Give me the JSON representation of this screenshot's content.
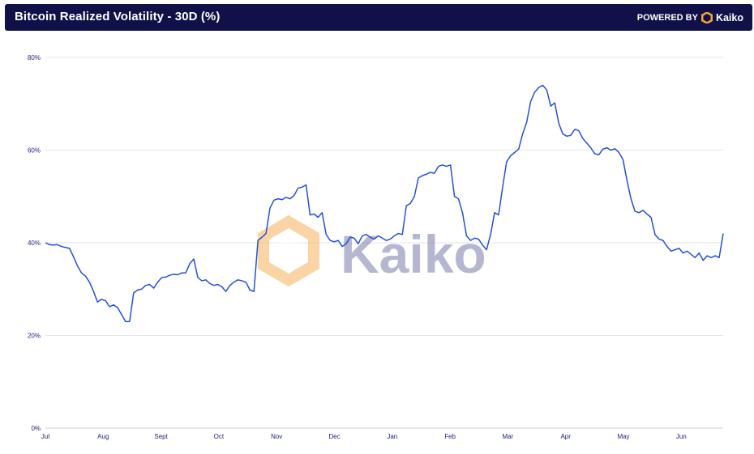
{
  "header": {
    "title": "Bitcoin Realized Volatility - 30D (%)",
    "powered_label": "POWERED BY",
    "brand": "Kaiko"
  },
  "watermark": {
    "text": "Kaiko"
  },
  "colors": {
    "header_bg": "#0f1148",
    "line": "#2450d8",
    "grid": "#e6e6e6",
    "tick_text": "#1a1f7a",
    "logo_orange": "#f7a23a"
  },
  "chart_data": {
    "type": "line",
    "title": "Bitcoin Realized Volatility - 30D (%)",
    "xlabel": "",
    "ylabel": "",
    "ylim": [
      0,
      80
    ],
    "yticks": [
      "0%",
      "20%",
      "40%",
      "60%",
      "80%"
    ],
    "ytick_values": [
      0,
      20,
      40,
      60,
      80
    ],
    "xticks": [
      "Jul",
      "Aug",
      "Sept",
      "Oct",
      "Nov",
      "Dec",
      "Jan",
      "Feb",
      "Mar",
      "Apr",
      "May",
      "Jun"
    ],
    "grid": true,
    "legend": "none",
    "series": [
      {
        "values": [
          40.0,
          39.6,
          39.5,
          39.6,
          39.2,
          39.0,
          38.8,
          37.0,
          35.0,
          33.5,
          32.8,
          31.5,
          29.5,
          27.2,
          27.8,
          27.5,
          26.2,
          26.6,
          26.0,
          24.5,
          23.0,
          23.0,
          29.2,
          29.8,
          30.0,
          30.8,
          31.0,
          30.2,
          31.5,
          32.5,
          32.6,
          33.0,
          33.2,
          33.1,
          33.5,
          33.5,
          35.5,
          36.5,
          32.5,
          31.8,
          32.0,
          31.2,
          30.8,
          31.0,
          30.5,
          29.5,
          30.8,
          31.5,
          32.0,
          31.8,
          31.5,
          29.8,
          29.5,
          40.5,
          41.2,
          42.0,
          47.5,
          49.2,
          49.5,
          49.3,
          49.8,
          49.5,
          50.2,
          51.8,
          52.0,
          52.5,
          46.0,
          46.2,
          45.5,
          46.5,
          41.8,
          40.5,
          40.2,
          40.5,
          39.2,
          39.8,
          41.2,
          41.0,
          39.8,
          41.5,
          41.8,
          41.2,
          40.8,
          41.5,
          41.0,
          40.5,
          40.8,
          41.5,
          42.0,
          41.8,
          48.0,
          48.5,
          50.0,
          54.0,
          54.5,
          54.8,
          55.2,
          55.0,
          56.5,
          56.8,
          56.5,
          56.8,
          50.0,
          49.5,
          46.5,
          41.5,
          40.5,
          41.0,
          40.8,
          39.5,
          38.5,
          41.8,
          46.5,
          46.0,
          52.0,
          57.5,
          58.8,
          59.5,
          60.2,
          63.5,
          66.0,
          70.5,
          72.5,
          73.5,
          74.0,
          73.0,
          69.5,
          70.2,
          65.8,
          63.5,
          63.0,
          63.2,
          64.5,
          64.2,
          62.5,
          61.5,
          60.5,
          59.2,
          59.0,
          60.2,
          60.5,
          60.0,
          60.3,
          59.5,
          58.0,
          53.5,
          49.5,
          46.8,
          46.5,
          47.0,
          46.2,
          45.5,
          41.8,
          40.8,
          40.5,
          39.2,
          38.2,
          38.5,
          38.8,
          37.8,
          38.2,
          37.5,
          36.8,
          37.8,
          36.2,
          37.2,
          36.8,
          37.2,
          36.8,
          42.0
        ]
      }
    ]
  }
}
